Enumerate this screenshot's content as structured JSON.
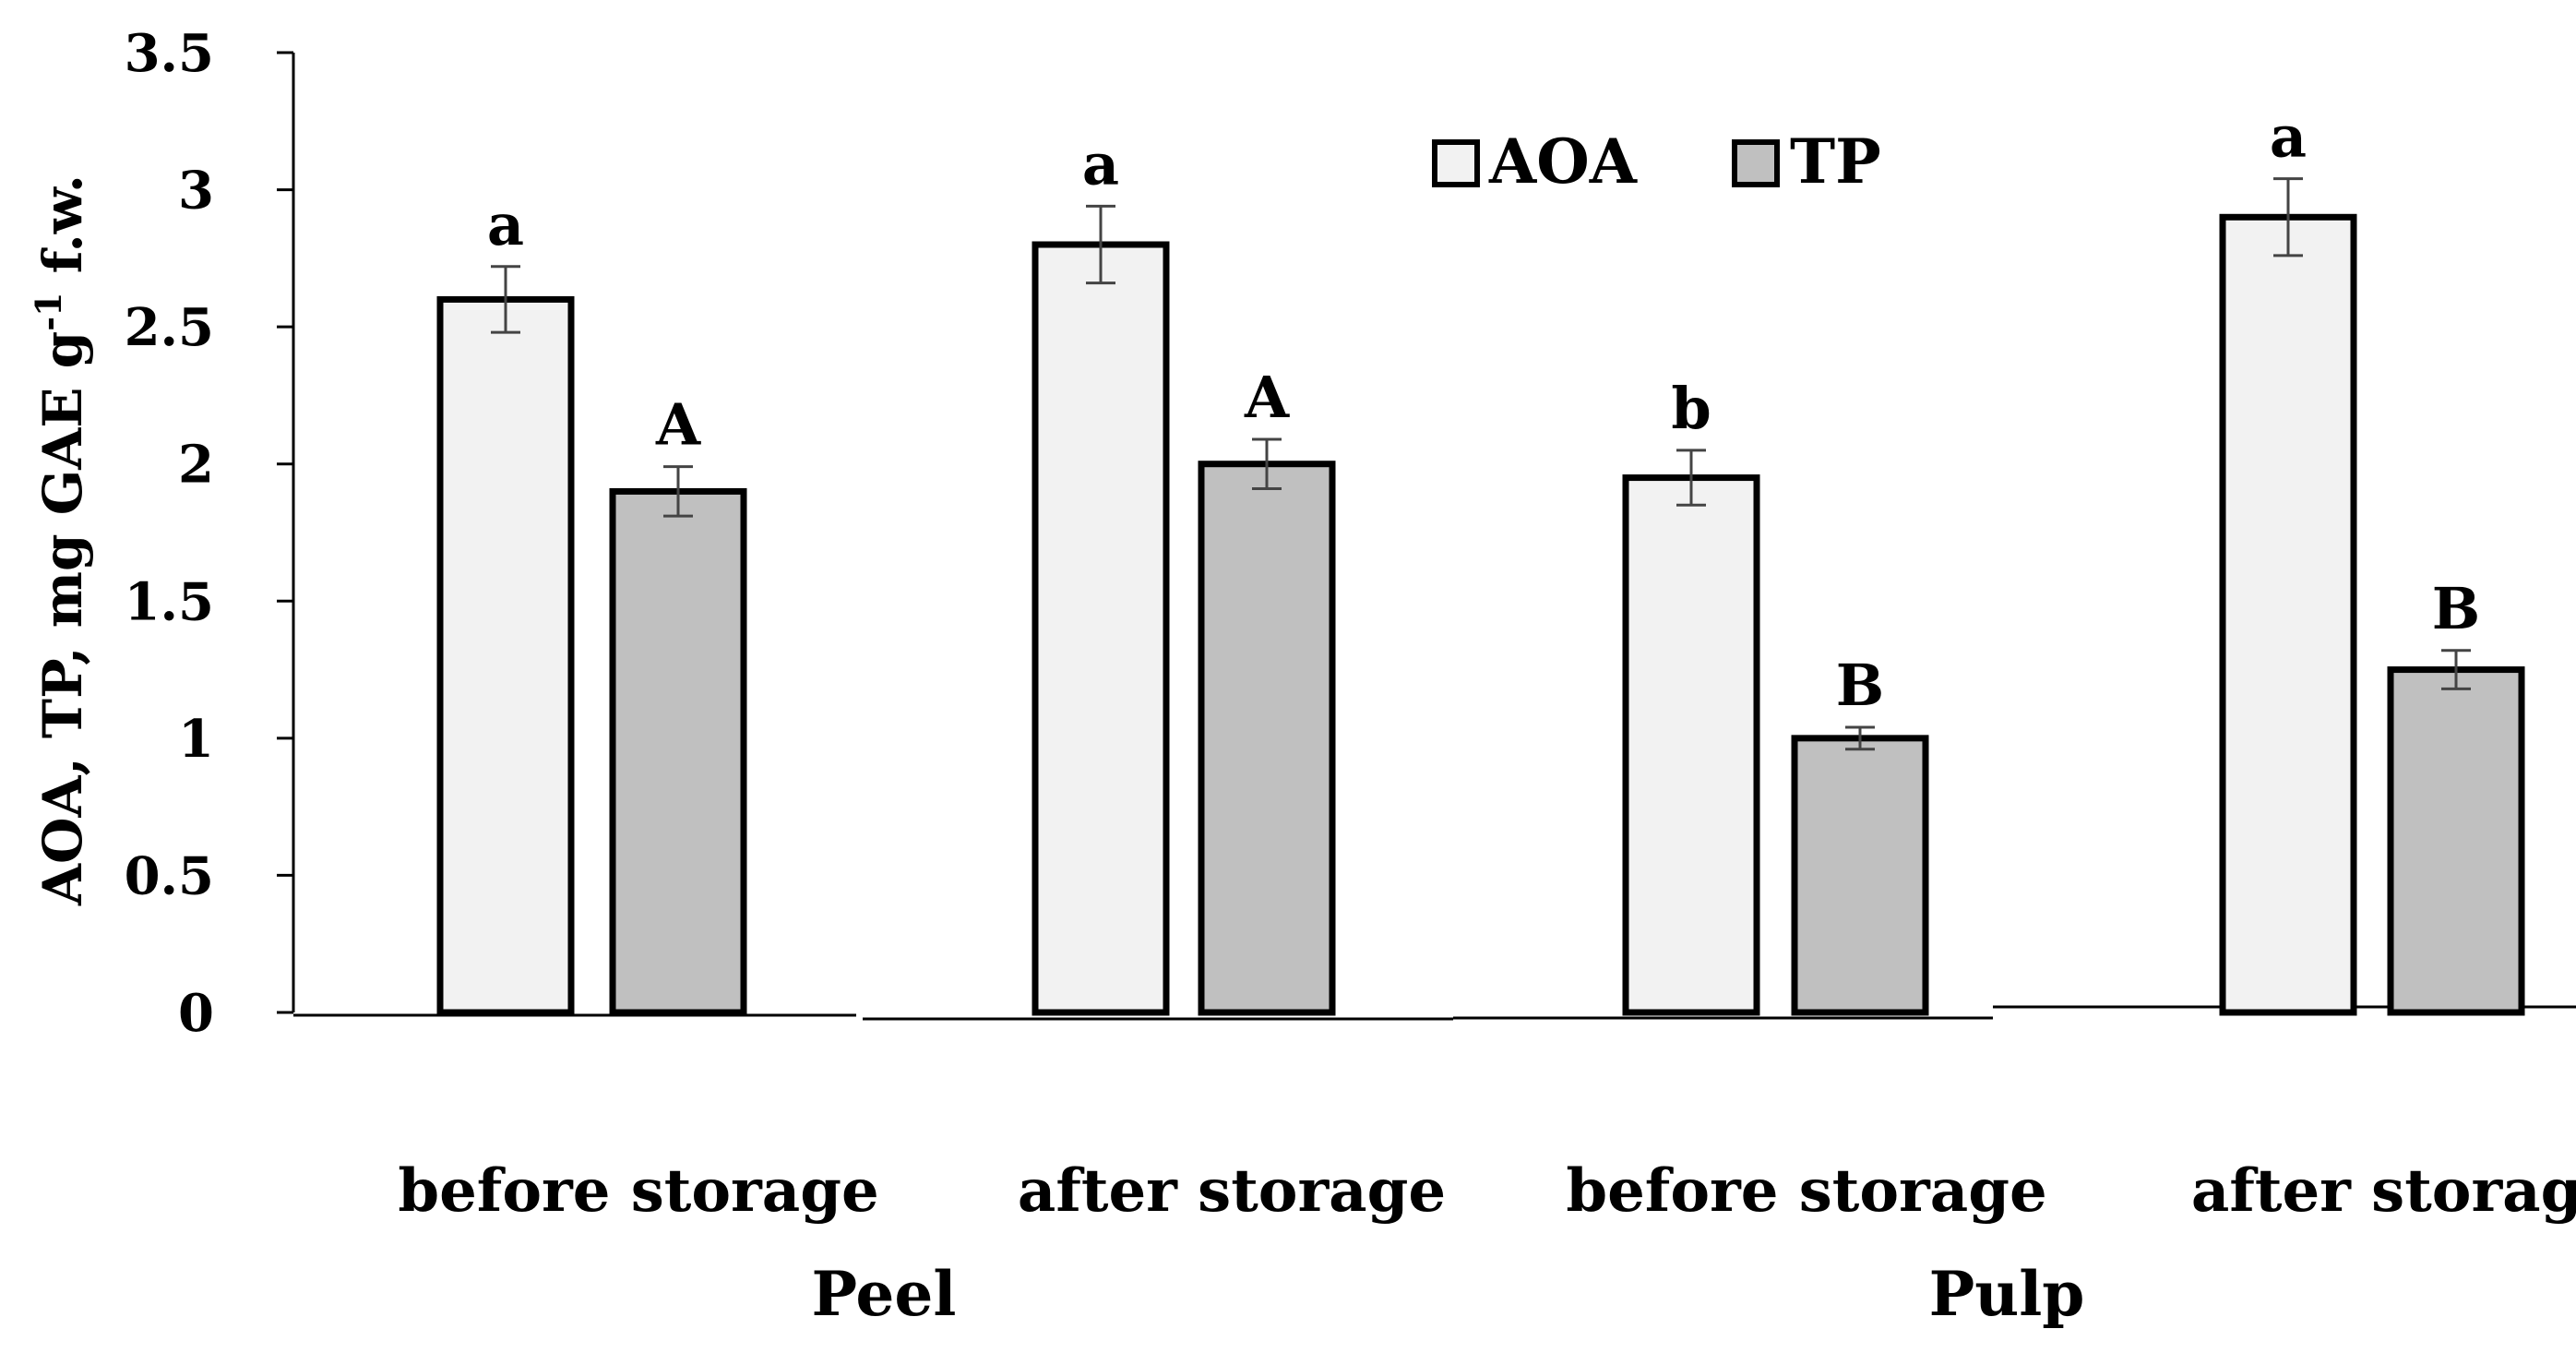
{
  "chart_data": {
    "type": "bar",
    "title": "",
    "ylabel": "AOA, TP, mg GAE g-1 f.w.",
    "ylabel_parts": {
      "main": "AOA, TP, mg GAE g",
      "superscript": "-1",
      "tail": " f.w."
    },
    "ylim": [
      0,
      3.5
    ],
    "yticks": [
      "0",
      "0.5",
      "1",
      "1.5",
      "2",
      "2.5",
      "3",
      "3.5"
    ],
    "ytick_values": [
      0,
      0.5,
      1,
      1.5,
      2,
      2.5,
      3,
      3.5
    ],
    "categories": [
      "before storage",
      "after storage",
      "before storage",
      "after storage"
    ],
    "groups": [
      "Peel",
      "Pulp"
    ],
    "legend": {
      "position": "top-right",
      "entries": [
        "AOA",
        "TP"
      ]
    },
    "series": [
      {
        "name": "AOA",
        "color": "#f2f2f2",
        "values": [
          2.6,
          2.8,
          1.95,
          2.9
        ],
        "errors": [
          0.12,
          0.14,
          0.1,
          0.14
        ],
        "labels": [
          "a",
          "a",
          "b",
          "a"
        ]
      },
      {
        "name": "TP",
        "color": "#c0c0c0",
        "values": [
          1.9,
          2.0,
          1.0,
          1.25
        ],
        "errors": [
          0.09,
          0.09,
          0.04,
          0.07
        ],
        "labels": [
          "A",
          "A",
          "B",
          "B"
        ]
      }
    ]
  }
}
